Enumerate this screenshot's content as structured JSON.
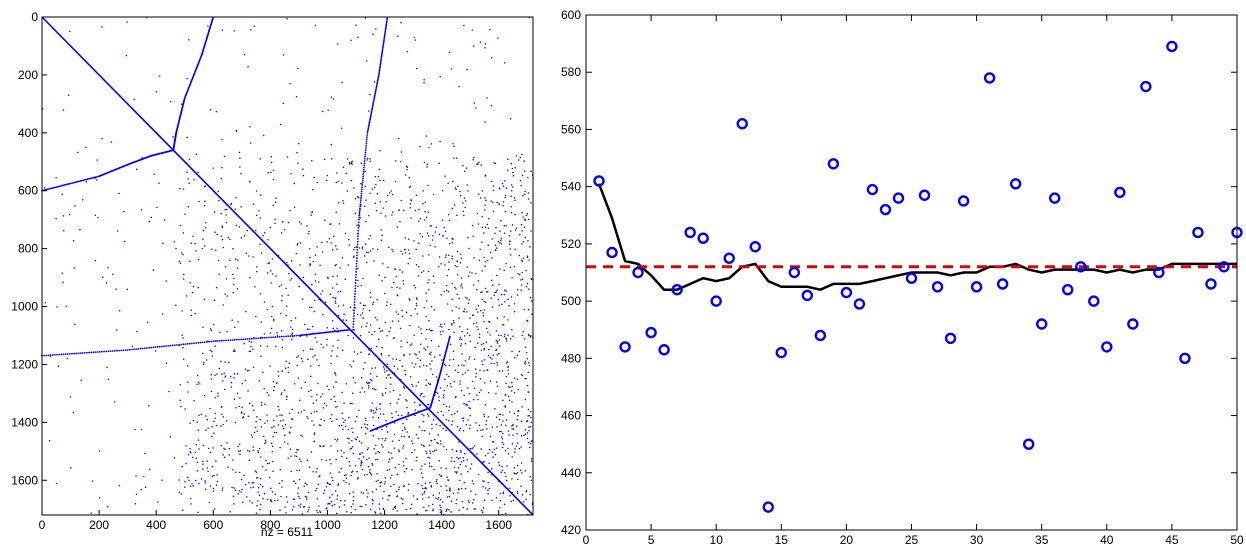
{
  "chart_data": [
    {
      "type": "scatter",
      "subtype": "sparsity-pattern",
      "title": "",
      "xlabel": "nz = 6511",
      "ylabel": "",
      "xlim": [
        0,
        1720
      ],
      "ylim": [
        0,
        1720
      ],
      "y_axis_reversed": true,
      "x_ticks": [
        "0",
        "200",
        "400",
        "600",
        "800",
        "1000",
        "1200",
        "1400",
        "1600"
      ],
      "y_ticks": [
        "0",
        "200",
        "400",
        "600",
        "800",
        "1000",
        "1200",
        "1400",
        "1600"
      ],
      "nonzero_count": 6511,
      "marker_color": "#0000ff",
      "structure": {
        "main_diagonal": [
          [
            0,
            0
          ],
          [
            1720,
            1720
          ]
        ],
        "curves": [
          {
            "points": [
              [
                0,
                600
              ],
              [
                200,
                550
              ],
              [
                300,
                510
              ],
              [
                380,
                480
              ],
              [
                460,
                460
              ],
              [
                470,
                400
              ],
              [
                500,
                280
              ],
              [
                560,
                130
              ],
              [
                600,
                0
              ]
            ]
          },
          {
            "points": [
              [
                1090,
                1080
              ],
              [
                1110,
                700
              ],
              [
                1140,
                400
              ],
              [
                1180,
                200
              ],
              [
                1210,
                0
              ]
            ]
          },
          {
            "points": [
              [
                0,
                1170
              ],
              [
                300,
                1150
              ],
              [
                600,
                1120
              ],
              [
                900,
                1100
              ],
              [
                1080,
                1080
              ]
            ]
          },
          {
            "points": [
              [
                1150,
                1430
              ],
              [
                1250,
                1390
              ],
              [
                1360,
                1350
              ],
              [
                1390,
                1250
              ],
              [
                1430,
                1100
              ]
            ]
          }
        ]
      }
    },
    {
      "type": "scatter",
      "title": "",
      "xlabel": "",
      "ylabel": "",
      "xlim": [
        0,
        50
      ],
      "ylim": [
        420,
        600
      ],
      "x_ticks": [
        "0",
        "5",
        "10",
        "15",
        "20",
        "25",
        "30",
        "35",
        "40",
        "45",
        "50"
      ],
      "y_ticks": [
        "420",
        "440",
        "460",
        "480",
        "500",
        "520",
        "540",
        "560",
        "580",
        "600"
      ],
      "series": [
        {
          "style": "circle-marker",
          "color": "#0000ff",
          "x": [
            1,
            2,
            3,
            4,
            5,
            6,
            7,
            8,
            9,
            10,
            11,
            12,
            13,
            14,
            15,
            16,
            17,
            18,
            19,
            20,
            21,
            22,
            23,
            24,
            25,
            26,
            27,
            28,
            29,
            30,
            31,
            32,
            33,
            34,
            35,
            36,
            37,
            38,
            39,
            40,
            41,
            42,
            43,
            44,
            45,
            46,
            47,
            48,
            49,
            50
          ],
          "y": [
            542,
            517,
            484,
            510,
            489,
            483,
            504,
            524,
            522,
            500,
            515,
            562,
            519,
            428,
            482,
            510,
            502,
            488,
            548,
            503,
            499,
            539,
            532,
            536,
            508,
            537,
            505,
            487,
            535,
            505,
            578,
            506,
            541,
            450,
            492,
            536,
            504,
            512,
            500,
            484,
            538,
            492,
            575,
            510,
            589,
            480,
            524,
            506,
            512,
            524
          ]
        },
        {
          "style": "line",
          "color": "#000000",
          "x": [
            1,
            2,
            3,
            4,
            5,
            6,
            7,
            8,
            9,
            10,
            11,
            12,
            13,
            14,
            15,
            16,
            17,
            18,
            19,
            20,
            21,
            22,
            23,
            24,
            25,
            26,
            27,
            28,
            29,
            30,
            31,
            32,
            33,
            34,
            35,
            36,
            37,
            38,
            39,
            40,
            41,
            42,
            43,
            44,
            45,
            46,
            47,
            48,
            49,
            50
          ],
          "y": [
            541,
            529,
            514,
            513,
            509,
            504,
            504,
            506,
            508,
            507,
            508,
            512,
            513,
            507,
            505,
            505,
            505,
            504,
            506,
            506,
            506,
            507,
            508,
            509,
            510,
            510,
            510,
            509,
            510,
            510,
            512,
            512,
            513,
            511,
            510,
            511,
            511,
            511,
            511,
            510,
            511,
            510,
            511,
            511,
            513,
            513,
            513,
            513,
            513,
            513
          ]
        },
        {
          "style": "dashed-line",
          "color": "#e00000",
          "x": [
            0,
            50
          ],
          "y": [
            512,
            512
          ]
        }
      ]
    }
  ]
}
